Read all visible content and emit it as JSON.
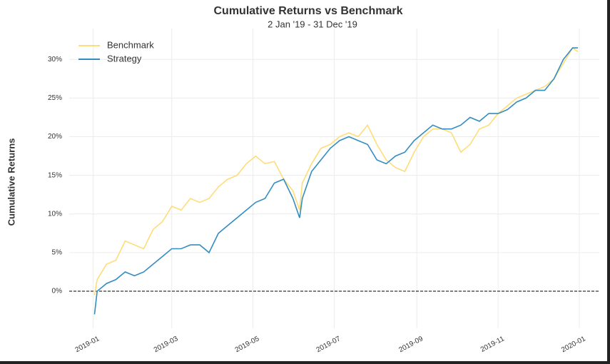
{
  "chart_data": {
    "type": "line",
    "title": "Cumulative Returns vs Benchmark",
    "subtitle": "2 Jan '19 - 31 Dec '19",
    "y_label": "Cumulative Returns",
    "x": [
      "2019-01-02",
      "2019-01-04",
      "2019-01-11",
      "2019-01-18",
      "2019-01-25",
      "2019-02-01",
      "2019-02-08",
      "2019-02-15",
      "2019-02-22",
      "2019-03-01",
      "2019-03-08",
      "2019-03-15",
      "2019-03-22",
      "2019-03-29",
      "2019-04-05",
      "2019-04-12",
      "2019-04-19",
      "2019-04-26",
      "2019-05-03",
      "2019-05-10",
      "2019-05-17",
      "2019-05-24",
      "2019-05-31",
      "2019-06-05",
      "2019-06-07",
      "2019-06-14",
      "2019-06-21",
      "2019-06-28",
      "2019-07-05",
      "2019-07-12",
      "2019-07-19",
      "2019-07-26",
      "2019-08-02",
      "2019-08-09",
      "2019-08-16",
      "2019-08-23",
      "2019-08-30",
      "2019-09-06",
      "2019-09-13",
      "2019-09-20",
      "2019-09-27",
      "2019-10-04",
      "2019-10-11",
      "2019-10-18",
      "2019-10-25",
      "2019-11-01",
      "2019-11-08",
      "2019-11-15",
      "2019-11-22",
      "2019-11-29",
      "2019-12-06",
      "2019-12-13",
      "2019-12-20",
      "2019-12-27",
      "2019-12-31"
    ],
    "series": [
      {
        "name": "Benchmark",
        "color": "#fedd78",
        "values": [
          -0.5,
          1.5,
          3.5,
          4,
          6.5,
          6,
          5.5,
          8,
          9,
          11,
          10.5,
          12,
          11.5,
          12,
          13.5,
          14.5,
          15,
          16.5,
          17.5,
          16.5,
          16.8,
          14.5,
          13,
          10.5,
          14,
          16.5,
          18.5,
          19,
          20,
          20.5,
          20,
          21.5,
          19,
          17,
          16,
          15.5,
          18,
          20,
          21,
          21,
          20.5,
          18,
          19,
          21,
          21.5,
          23,
          24,
          25,
          25.5,
          26,
          26.5,
          27.5,
          29.5,
          31.5,
          31
        ]
      },
      {
        "name": "Strategy",
        "color": "#348dc1",
        "values": [
          -3,
          0,
          1,
          1.5,
          2.5,
          2,
          2.5,
          3.5,
          4.5,
          5.5,
          5.5,
          6,
          6,
          5,
          7.5,
          8.5,
          9.5,
          10.5,
          11.5,
          12,
          14,
          14.5,
          12,
          9.5,
          12,
          15.5,
          17,
          18.5,
          19.5,
          20,
          19.5,
          19,
          17,
          16.5,
          17.5,
          18,
          19.5,
          20.5,
          21.5,
          21,
          21,
          21.5,
          22.5,
          22,
          23,
          23,
          23.5,
          24.5,
          25,
          26,
          26,
          27.5,
          30,
          31.5,
          31.5
        ]
      }
    ],
    "xlim": [
      "2018-12-14",
      "2020-01-16"
    ],
    "xticks": [
      {
        "value": "2019-01-01",
        "label": "2019-01"
      },
      {
        "value": "2019-03-01",
        "label": "2019-03"
      },
      {
        "value": "2019-05-01",
        "label": "2019-05"
      },
      {
        "value": "2019-07-01",
        "label": "2019-07"
      },
      {
        "value": "2019-09-01",
        "label": "2019-09"
      },
      {
        "value": "2019-11-01",
        "label": "2019-11"
      },
      {
        "value": "2020-01-01",
        "label": "2020-01"
      }
    ],
    "ylim": [
      -4.8,
      34
    ],
    "yticks": [
      {
        "value": 0,
        "label": "0%"
      },
      {
        "value": 5,
        "label": "5%"
      },
      {
        "value": 10,
        "label": "10%"
      },
      {
        "value": 15,
        "label": "15%"
      },
      {
        "value": 20,
        "label": "20%"
      },
      {
        "value": 25,
        "label": "25%"
      },
      {
        "value": 30,
        "label": "30%"
      }
    ],
    "grid": true,
    "zero_line": true,
    "legend": "upper left"
  }
}
